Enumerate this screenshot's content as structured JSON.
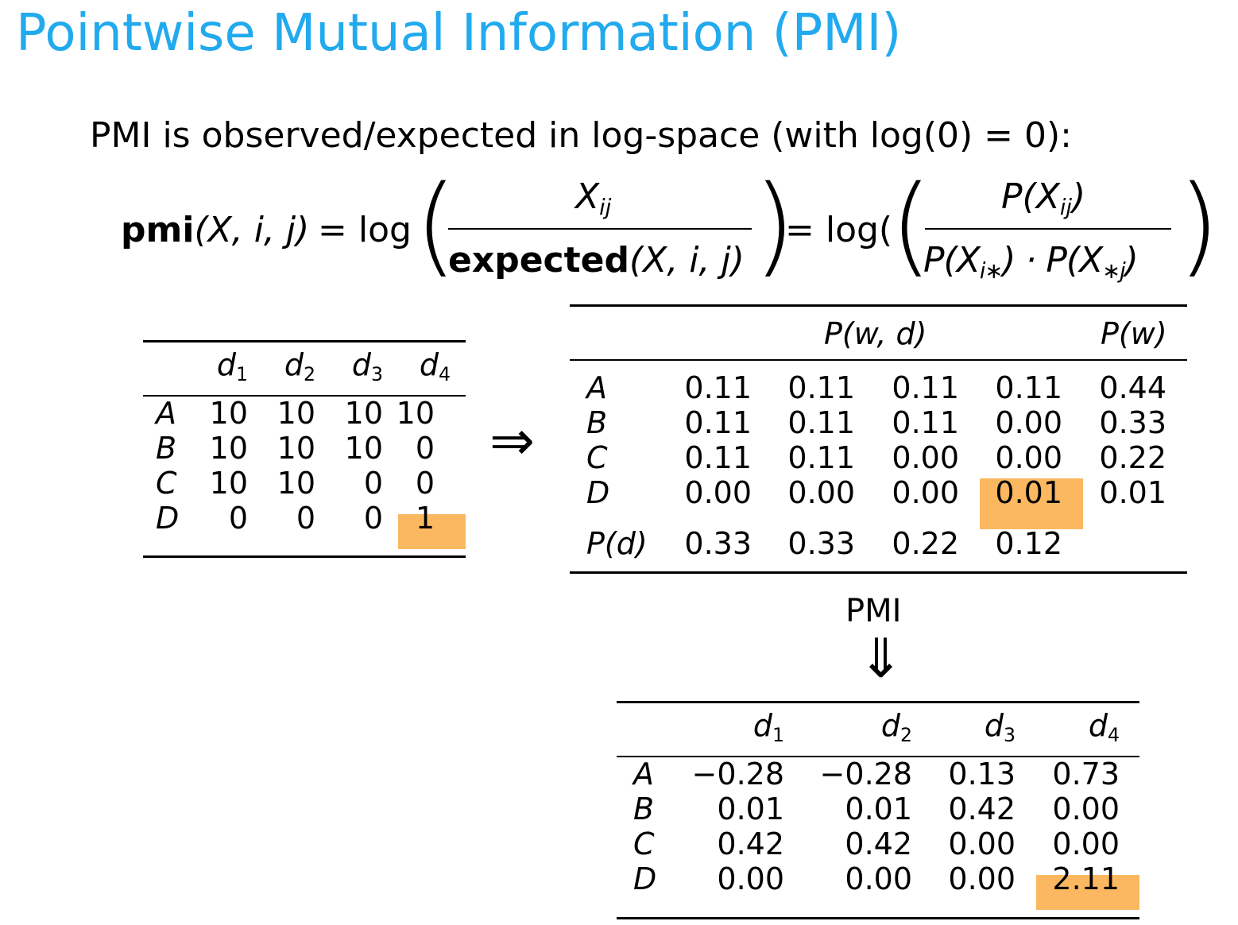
{
  "title": "Pointwise Mutual Information (PMI)",
  "intro": "PMI is observed/expected in log-space (with log(0) = 0):",
  "formula": {
    "pmi": "pmi",
    "args": "(X, i, j)",
    "eq1": "= log",
    "num1_var": "X",
    "num1_sub": "ij",
    "den1_bold": "expected",
    "den1_args": "(X, i, j)",
    "eq2": "= log(",
    "num2": "P(X",
    "num2_sub": "ij",
    "num2_end": ")",
    "den2_a": "P(X",
    "den2_a_sub": "i∗",
    "den2_mid": ") · P(X",
    "den2_b_sub": "∗j",
    "den2_end": ")"
  },
  "counts": {
    "headers": [
      "",
      "d1",
      "d2",
      "d3",
      "d4"
    ],
    "rows": [
      {
        "label": "A",
        "values": [
          "10",
          "10",
          "10",
          "10"
        ]
      },
      {
        "label": "B",
        "values": [
          "10",
          "10",
          "10",
          "0"
        ]
      },
      {
        "label": "C",
        "values": [
          "10",
          "10",
          "0",
          "0"
        ]
      },
      {
        "label": "D",
        "values": [
          "0",
          "0",
          "0",
          "1"
        ]
      }
    ]
  },
  "arrow_right": "⇒",
  "probs": {
    "joint_header": "P(w, d)",
    "marg_header": "P(w)",
    "rows": [
      {
        "label": "A",
        "values": [
          "0.11",
          "0.11",
          "0.11",
          "0.11"
        ],
        "pw": "0.44"
      },
      {
        "label": "B",
        "values": [
          "0.11",
          "0.11",
          "0.11",
          "0.00"
        ],
        "pw": "0.33"
      },
      {
        "label": "C",
        "values": [
          "0.11",
          "0.11",
          "0.00",
          "0.00"
        ],
        "pw": "0.22"
      },
      {
        "label": "D",
        "values": [
          "0.00",
          "0.00",
          "0.00",
          "0.01"
        ],
        "pw": "0.01"
      }
    ],
    "pd_label": "P(d)",
    "pd_values": [
      "0.33",
      "0.33",
      "0.22",
      "0.12"
    ]
  },
  "pmi_label": "PMI",
  "arrow_down": "⇓",
  "pmi_table": {
    "headers": [
      "",
      "d1",
      "d2",
      "d3",
      "d4"
    ],
    "rows": [
      {
        "label": "A",
        "values": [
          "−0.28",
          "−0.28",
          "0.13",
          "0.73"
        ]
      },
      {
        "label": "B",
        "values": [
          "0.01",
          "0.01",
          "0.42",
          "0.00"
        ]
      },
      {
        "label": "C",
        "values": [
          "0.42",
          "0.42",
          "0.00",
          "0.00"
        ]
      },
      {
        "label": "D",
        "values": [
          "0.00",
          "0.00",
          "0.00",
          "2.11"
        ]
      }
    ]
  },
  "highlight_color": "#fbb860",
  "title_color": "#22aaee"
}
